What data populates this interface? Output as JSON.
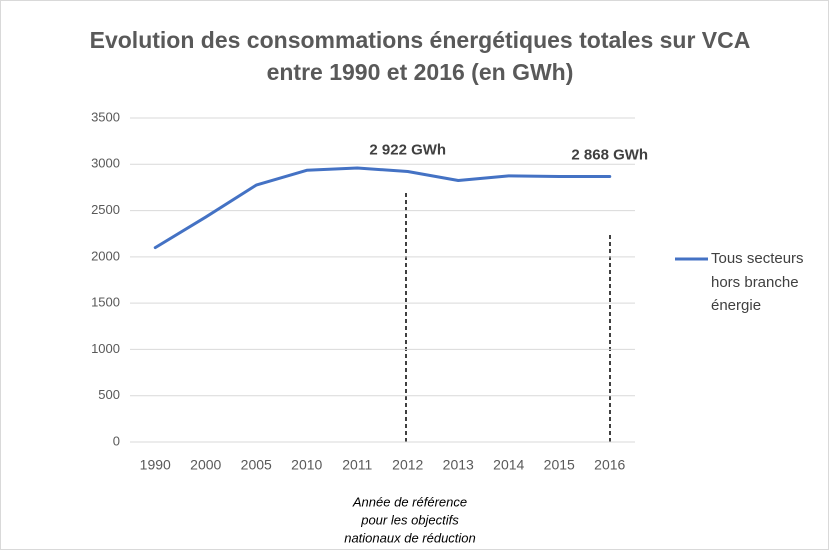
{
  "chart_data": {
    "type": "line",
    "title": [
      "Evolution des consommations énergétiques totales sur VCA",
      "entre 1990 et 2016 (en GWh)"
    ],
    "categories": [
      "1990",
      "2000",
      "2005",
      "2010",
      "2011",
      "2012",
      "2013",
      "2014",
      "2015",
      "2016"
    ],
    "series": [
      {
        "name": "Tous secteurs hors branche énergie",
        "color": "#4472c4",
        "values": [
          2100,
          2430,
          2775,
          2935,
          2960,
          2922,
          2825,
          2875,
          2868,
          2868
        ]
      }
    ],
    "ylim": [
      0,
      3500
    ],
    "yticks": [
      0,
      500,
      1000,
      1500,
      2000,
      2500,
      3000,
      3500
    ],
    "grid": true,
    "legend": "right",
    "annotations": [
      {
        "text": "2 922 GWh",
        "x": "2012",
        "y": 2922
      },
      {
        "text": "2 868 GWh",
        "x": "2016",
        "y": 2868
      }
    ],
    "note": [
      "Année de référence",
      "pour les objectifs",
      "nationaux de réduction"
    ]
  }
}
